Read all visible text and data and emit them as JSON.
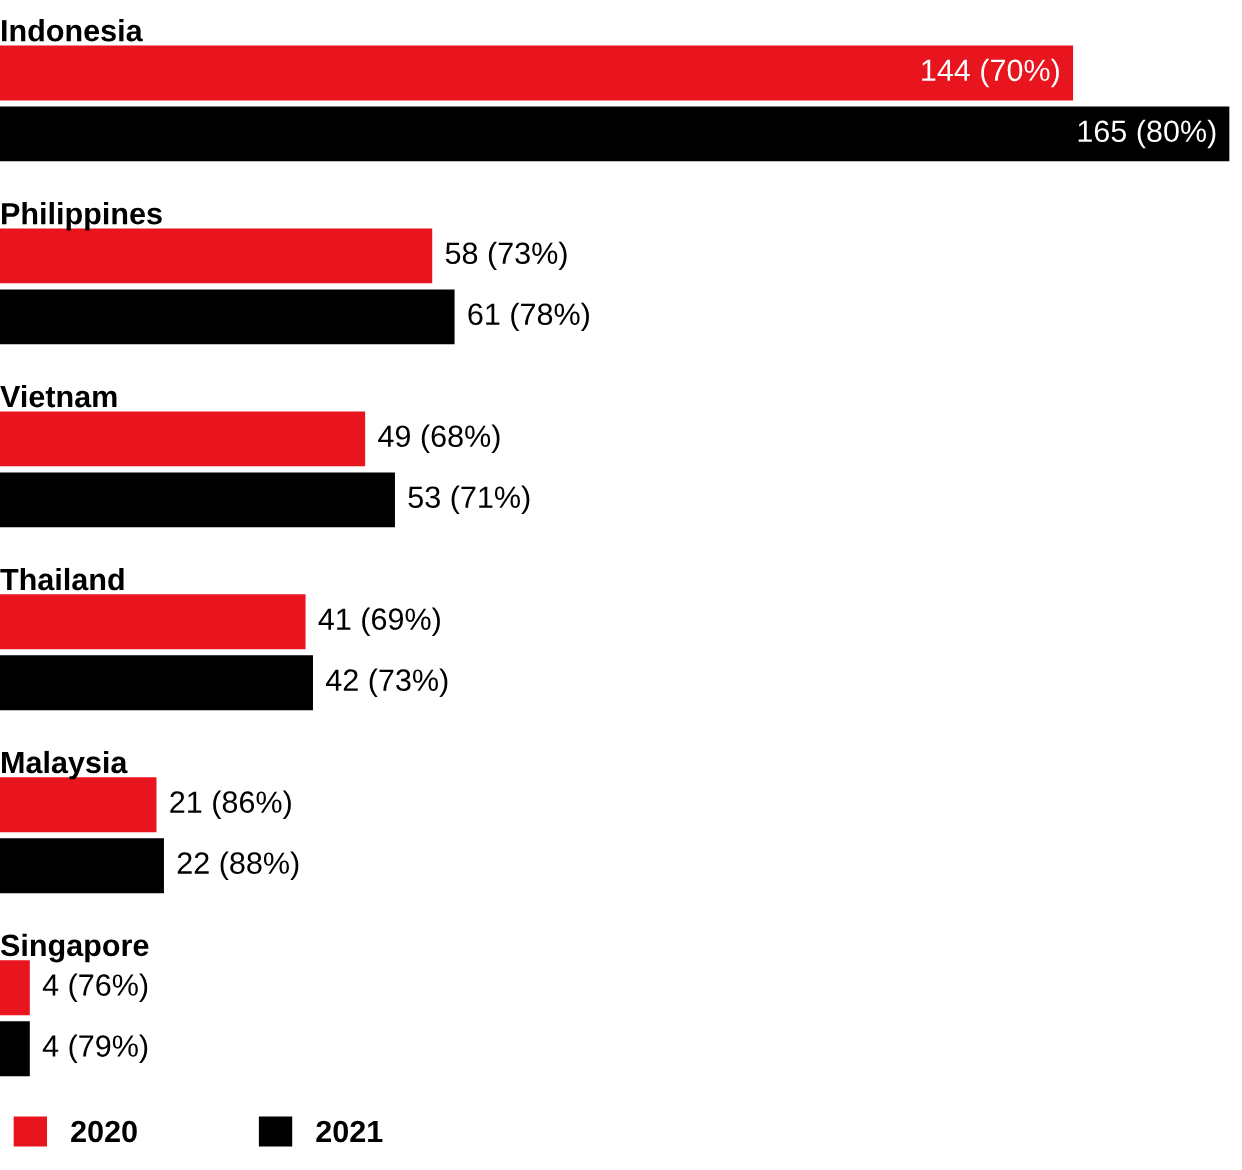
{
  "chart_data": {
    "type": "bar",
    "orientation": "horizontal",
    "categories": [
      "Indonesia",
      "Philippines",
      "Vietnam",
      "Thailand",
      "Malaysia",
      "Singapore"
    ],
    "series": [
      {
        "name": "2020",
        "color": "#e8141e",
        "values": [
          144,
          58,
          49,
          41,
          21,
          4
        ],
        "value_labels": [
          "144 (70%)",
          "58 (73%)",
          "49 (68%)",
          "41 (69%)",
          "21 (86%)",
          "4 (76%)"
        ]
      },
      {
        "name": "2021",
        "color": "#000000",
        "values": [
          165,
          61,
          53,
          42,
          22,
          4
        ],
        "value_labels": [
          "165 (80%)",
          "61 (78%)",
          "53 (71%)",
          "42 (73%)",
          "22 (88%)",
          "4 (79%)"
        ]
      }
    ],
    "legend": "bottom left"
  }
}
